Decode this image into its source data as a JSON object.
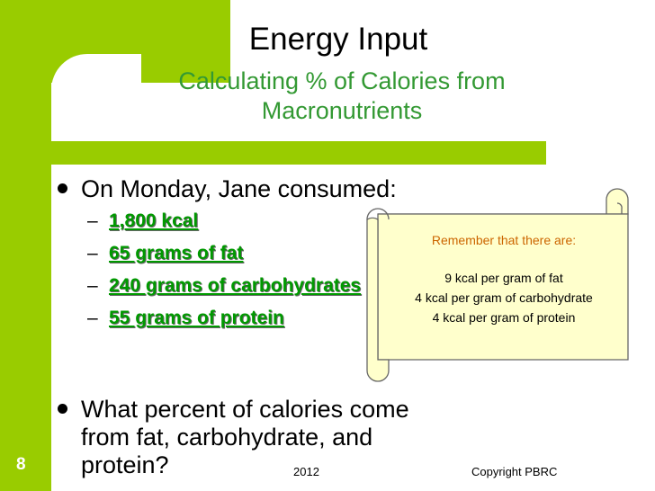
{
  "slide": {
    "title": "Energy Input",
    "subtitle_line1": "Calculating % of Calories from",
    "subtitle_line2": "Macronutrients",
    "bullet1": "On Monday, Jane consumed:",
    "sub_items": [
      "1,800 kcal",
      "65 grams of fat",
      "240 grams of carbohydrates",
      "55 grams of protein"
    ],
    "bullet2_line1": "What percent of calories come",
    "bullet2_line2": "from fat, carbohydrate, and",
    "bullet2_line3": "protein?",
    "scroll": {
      "remember": "Remember that there are:",
      "line1": "9 kcal per gram of fat",
      "line2": "4 kcal per gram of carbohydrate",
      "line3": "4 kcal per gram of protein"
    },
    "footer": {
      "page_number": "8",
      "year": "2012",
      "copyright": "Copyright PBRC"
    }
  },
  "colors": {
    "accent_green": "#99cc00",
    "subtitle_green": "#339933",
    "item_green": "#009900",
    "scroll_fill": "#ffffcc",
    "remember_orange": "#cc6600"
  }
}
